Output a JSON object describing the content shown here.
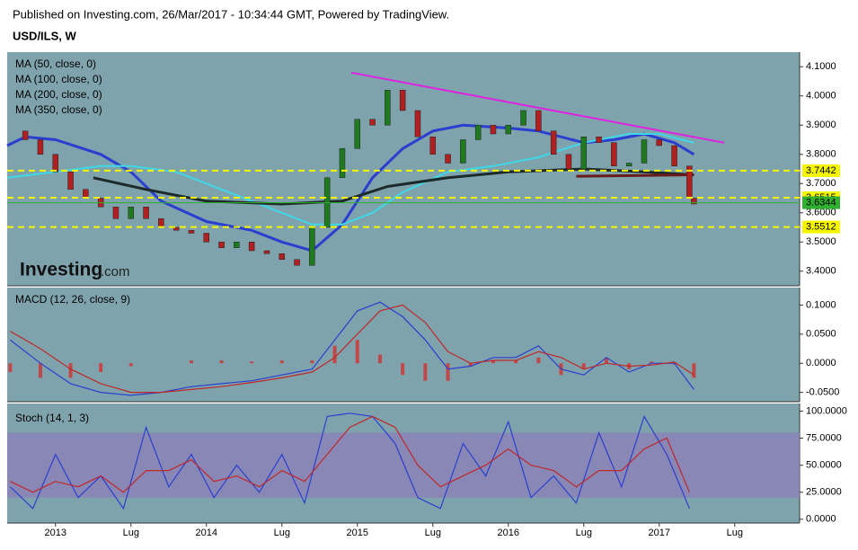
{
  "published": "Published on Investing.com, 26/Mar/2017 - 10:34:44 GMT, Powered by TradingView.",
  "symbol": "USD/ILS, W",
  "watermark": [
    "Investing",
    ".com"
  ],
  "chart_data": [
    {
      "type": "price",
      "background": "#7ea3ad",
      "xlim": [
        2012.68,
        2017.93
      ],
      "ylim": [
        3.35,
        4.15
      ],
      "yticks": [
        {
          "value": 3.4,
          "label": "3.4000"
        },
        {
          "value": 3.5,
          "label": "3.5000"
        },
        {
          "value": 3.6,
          "label": "3.6000"
        },
        {
          "value": 3.7,
          "label": "3.7000"
        },
        {
          "value": 3.8,
          "label": "3.8000"
        },
        {
          "value": 3.9,
          "label": "3.9000"
        },
        {
          "value": 4.0,
          "label": "4.0000"
        },
        {
          "value": 4.1,
          "label": "4.1000"
        }
      ],
      "x": [
        2012.7,
        2012.8,
        2012.9,
        2013.0,
        2013.1,
        2013.2,
        2013.3,
        2013.4,
        2013.5,
        2013.6,
        2013.7,
        2013.8,
        2013.9,
        2014.0,
        2014.1,
        2014.2,
        2014.3,
        2014.4,
        2014.5,
        2014.6,
        2014.7,
        2014.8,
        2014.9,
        2015.0,
        2015.1,
        2015.2,
        2015.3,
        2015.4,
        2015.5,
        2015.6,
        2015.7,
        2015.8,
        2015.9,
        2016.0,
        2016.1,
        2016.2,
        2016.3,
        2016.4,
        2016.5,
        2016.6,
        2016.7,
        2016.8,
        2016.9,
        2017.0,
        2017.1,
        2017.2,
        2017.23
      ],
      "values": [
        3.88,
        3.85,
        3.8,
        3.74,
        3.68,
        3.65,
        3.62,
        3.58,
        3.62,
        3.58,
        3.55,
        3.54,
        3.53,
        3.5,
        3.48,
        3.5,
        3.47,
        3.46,
        3.44,
        3.42,
        3.55,
        3.72,
        3.82,
        3.92,
        3.9,
        4.02,
        3.95,
        3.86,
        3.8,
        3.77,
        3.85,
        3.9,
        3.87,
        3.9,
        3.95,
        3.88,
        3.8,
        3.75,
        3.86,
        3.84,
        3.76,
        3.77,
        3.85,
        3.83,
        3.76,
        3.65,
        3.63
      ],
      "up_color": "#1f7a1f",
      "down_color": "#b02020",
      "ma": [
        {
          "name": "MA (50, close, 0)",
          "color": "#2a3fcf",
          "width": 3,
          "x": [
            2012.68,
            2012.8,
            2013.0,
            2013.3,
            2013.5,
            2013.7,
            2014.0,
            2014.3,
            2014.5,
            2014.7,
            2014.9,
            2015.1,
            2015.3,
            2015.5,
            2015.7,
            2016.0,
            2016.2,
            2016.5,
            2016.7,
            2016.9,
            2017.1,
            2017.23
          ],
          "values": [
            3.83,
            3.86,
            3.85,
            3.8,
            3.74,
            3.64,
            3.57,
            3.54,
            3.5,
            3.47,
            3.56,
            3.72,
            3.82,
            3.88,
            3.9,
            3.89,
            3.88,
            3.84,
            3.85,
            3.87,
            3.84,
            3.8
          ]
        },
        {
          "name": "MA (100, close, 0)",
          "color": "#3fd8e8",
          "width": 2,
          "x": [
            2012.68,
            2013.0,
            2013.3,
            2013.5,
            2013.8,
            2014.0,
            2014.3,
            2014.5,
            2014.7,
            2014.9,
            2015.1,
            2015.3,
            2015.6,
            2015.9,
            2016.2,
            2016.5,
            2016.8,
            2017.0,
            2017.23
          ],
          "values": [
            3.72,
            3.74,
            3.76,
            3.76,
            3.74,
            3.7,
            3.64,
            3.6,
            3.56,
            3.56,
            3.6,
            3.67,
            3.74,
            3.76,
            3.79,
            3.84,
            3.87,
            3.87,
            3.84
          ]
        },
        {
          "name": "MA (200, close, 0)",
          "color": "#1e2a2a",
          "width": 3,
          "x": [
            2013.25,
            2013.6,
            2014.0,
            2014.5,
            2014.9,
            2015.2,
            2015.6,
            2016.0,
            2016.5,
            2016.9,
            2017.23
          ],
          "values": [
            3.72,
            3.68,
            3.64,
            3.63,
            3.64,
            3.69,
            3.72,
            3.74,
            3.75,
            3.74,
            3.73
          ]
        },
        {
          "name": "MA (350, close, 0)",
          "color": "#6a1a1a",
          "width": 3,
          "x": [
            2016.45,
            2017.23
          ],
          "values": [
            3.725,
            3.73
          ]
        }
      ],
      "trendline": {
        "x": [
          2014.96,
          2017.43
        ],
        "values": [
          4.08,
          3.84
        ],
        "color": "#e020e0"
      },
      "levels": [
        3.7442,
        3.6515,
        3.5512
      ],
      "level_color": "#f5f500",
      "last": 3.6344,
      "last_color": "#2fb02f"
    },
    {
      "type": "macd",
      "title": "MACD (12, 26, close, 9)",
      "background": "#7ea3ad",
      "xlim": [
        2012.68,
        2017.93
      ],
      "ylim": [
        -0.066,
        0.13
      ],
      "yticks": [
        {
          "value": -0.05,
          "label": "-0.0500"
        },
        {
          "value": 0,
          "label": "0.0000"
        },
        {
          "value": 0.05,
          "label": "0.0500"
        },
        {
          "value": 0.1,
          "label": "0.1000"
        }
      ],
      "x": [
        2012.7,
        2012.9,
        2013.1,
        2013.3,
        2013.5,
        2013.7,
        2013.9,
        2014.1,
        2014.3,
        2014.5,
        2014.7,
        2014.85,
        2015.0,
        2015.15,
        2015.3,
        2015.45,
        2015.6,
        2015.75,
        2015.9,
        2016.05,
        2016.2,
        2016.35,
        2016.5,
        2016.65,
        2016.8,
        2016.95,
        2017.1,
        2017.23
      ],
      "series": [
        {
          "color": "#2a3fcf",
          "values": [
            0.04,
            0.0,
            -0.035,
            -0.05,
            -0.055,
            -0.05,
            -0.04,
            -0.035,
            -0.03,
            -0.02,
            -0.01,
            0.04,
            0.09,
            0.105,
            0.08,
            0.04,
            -0.01,
            -0.005,
            0.01,
            0.01,
            0.03,
            -0.01,
            -0.02,
            0.01,
            -0.015,
            0.0,
            0.0,
            -0.045
          ]
        },
        {
          "color": "#c02828",
          "values": [
            0.055,
            0.025,
            -0.01,
            -0.035,
            -0.05,
            -0.05,
            -0.045,
            -0.04,
            -0.033,
            -0.025,
            -0.015,
            0.01,
            0.05,
            0.09,
            0.1,
            0.07,
            0.02,
            0.0,
            0.005,
            0.005,
            0.02,
            0.01,
            -0.01,
            0.0,
            -0.005,
            -0.003,
            0.002,
            -0.02
          ]
        }
      ],
      "histogram": [
        -0.015,
        -0.025,
        -0.025,
        -0.015,
        -0.005,
        0.0,
        0.005,
        0.005,
        0.003,
        0.005,
        0.005,
        0.03,
        0.04,
        0.015,
        -0.02,
        -0.03,
        -0.03,
        -0.005,
        0.005,
        0.005,
        0.01,
        -0.02,
        -0.01,
        0.01,
        -0.01,
        0.003,
        -0.002,
        -0.025
      ],
      "histogram_color": "#c04848"
    },
    {
      "type": "stoch",
      "title": "Stoch (14, 1, 3)",
      "background": "#7ea3ad",
      "xlim": [
        2012.68,
        2017.93
      ],
      "ylim": [
        -3.5,
        107
      ],
      "yticks": [
        {
          "value": 0,
          "label": "0.0000"
        },
        {
          "value": 25,
          "label": "25.0000"
        },
        {
          "value": 50,
          "label": "50.0000"
        },
        {
          "value": 75,
          "label": "75.0000"
        },
        {
          "value": 100,
          "label": "100.0000"
        }
      ],
      "xticks": [
        {
          "value": 2013,
          "label": "2013"
        },
        {
          "value": 2013.5,
          "label": "Lug"
        },
        {
          "value": 2014,
          "label": "2014"
        },
        {
          "value": 2014.5,
          "label": "Lug"
        },
        {
          "value": 2015,
          "label": "2015"
        },
        {
          "value": 2015.5,
          "label": "Lug"
        },
        {
          "value": 2016,
          "label": "2016"
        },
        {
          "value": 2016.5,
          "label": "Lug"
        },
        {
          "value": 2017,
          "label": "2017"
        },
        {
          "value": 2017.5,
          "label": "Lug"
        }
      ],
      "band": [
        20,
        80
      ],
      "band_color": "#8c80b8",
      "x": [
        2012.7,
        2012.85,
        2013.0,
        2013.15,
        2013.3,
        2013.45,
        2013.6,
        2013.75,
        2013.9,
        2014.05,
        2014.2,
        2014.35,
        2014.5,
        2014.65,
        2014.8,
        2014.95,
        2015.1,
        2015.25,
        2015.4,
        2015.55,
        2015.7,
        2015.85,
        2016.0,
        2016.15,
        2016.3,
        2016.45,
        2016.6,
        2016.75,
        2016.9,
        2017.05,
        2017.2
      ],
      "series": [
        {
          "color": "#2a3fcf",
          "values": [
            30,
            10,
            60,
            20,
            40,
            10,
            85,
            30,
            60,
            20,
            50,
            25,
            60,
            15,
            95,
            98,
            95,
            70,
            20,
            10,
            70,
            40,
            90,
            20,
            40,
            15,
            80,
            30,
            95,
            60,
            10
          ]
        },
        {
          "color": "#c02828",
          "values": [
            35,
            25,
            35,
            30,
            40,
            25,
            45,
            45,
            55,
            35,
            40,
            30,
            45,
            35,
            60,
            85,
            95,
            85,
            50,
            30,
            40,
            50,
            65,
            50,
            45,
            30,
            45,
            45,
            65,
            75,
            25
          ]
        }
      ]
    }
  ]
}
